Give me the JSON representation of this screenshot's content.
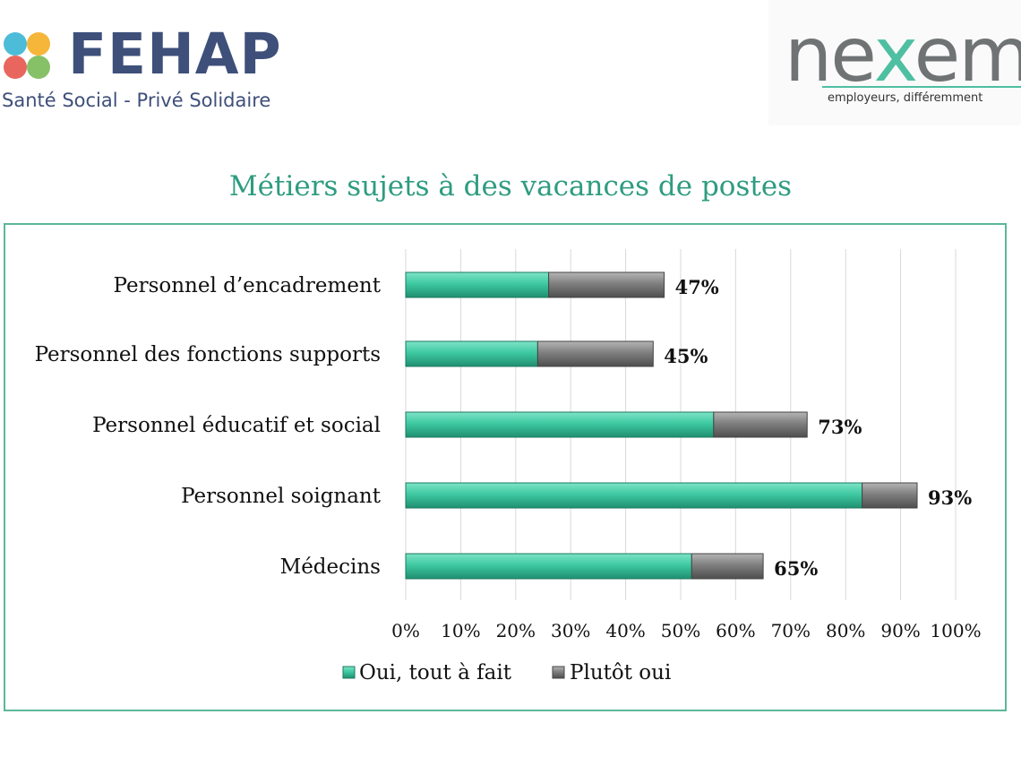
{
  "header": {
    "fehap_name": "FEHAP",
    "fehap_tagline": "Santé Social - Privé Solidaire",
    "nexem_name_start": "ne",
    "nexem_name_x": "x",
    "nexem_name_end": "em",
    "nexem_tagline": "employeurs, différemment"
  },
  "colors": {
    "accent": "#2e9c80",
    "oui_tout_a_fait": "#3ec9a2",
    "plutot_oui": "#7f7f7f",
    "frame": "#5bb79a",
    "grid": "#d9d9d9"
  },
  "chart_data": {
    "type": "bar",
    "orientation": "horizontal",
    "stacked": true,
    "title": "Métiers sujets à des vacances de postes",
    "categories": [
      "Personnel d’encadrement",
      "Personnel des fonctions supports",
      "Personnel éducatif et social",
      "Personnel soignant",
      "Médecins"
    ],
    "series": [
      {
        "name": "Oui, tout à fait",
        "values": [
          26,
          24,
          56,
          83,
          52
        ]
      },
      {
        "name": "Plutôt oui",
        "values": [
          21,
          21,
          17,
          10,
          13
        ]
      }
    ],
    "total_labels": [
      "47%",
      "45%",
      "73%",
      "93%",
      "65%"
    ],
    "xlim": [
      0,
      100
    ],
    "xticks": [
      "0%",
      "10%",
      "20%",
      "30%",
      "40%",
      "50%",
      "60%",
      "70%",
      "80%",
      "90%",
      "100%"
    ],
    "grid": true,
    "legend_position": "bottom"
  }
}
